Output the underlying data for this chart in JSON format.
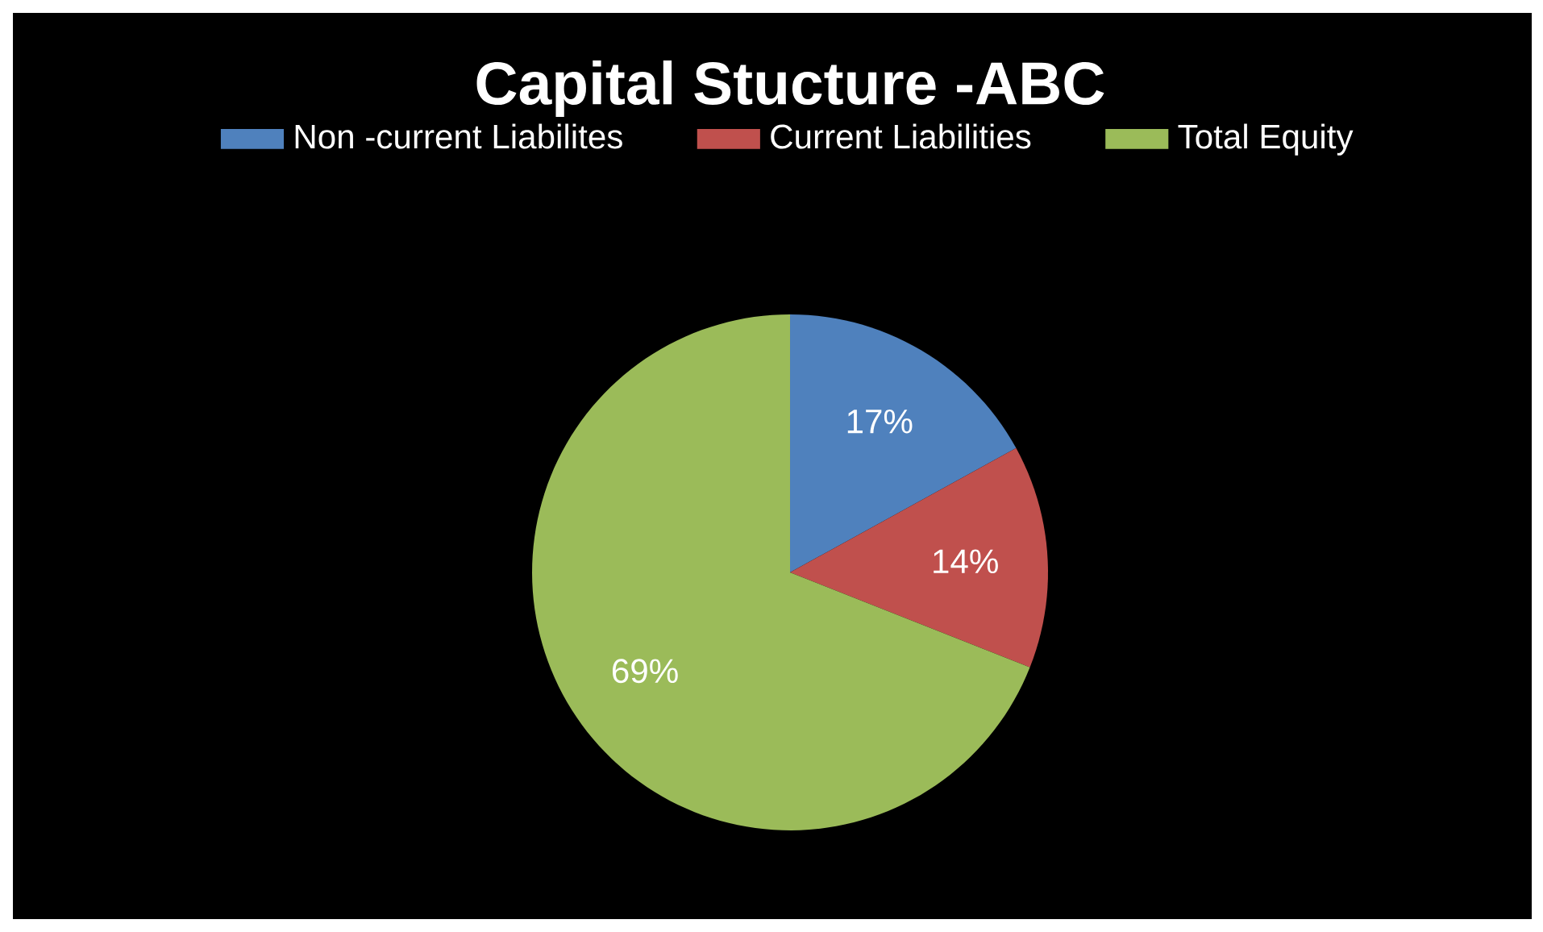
{
  "chart_data": {
    "type": "pie",
    "title": "Capital Stucture -ABC",
    "categories": [
      "Non -current Liabilites",
      "Current Liabilities",
      "Total Equity"
    ],
    "values": [
      17,
      14,
      69
    ],
    "colors": [
      "#4f81bd",
      "#c0504d",
      "#9bbb59"
    ],
    "value_labels": [
      "17%",
      "14%",
      "69%"
    ],
    "legend": "top"
  }
}
